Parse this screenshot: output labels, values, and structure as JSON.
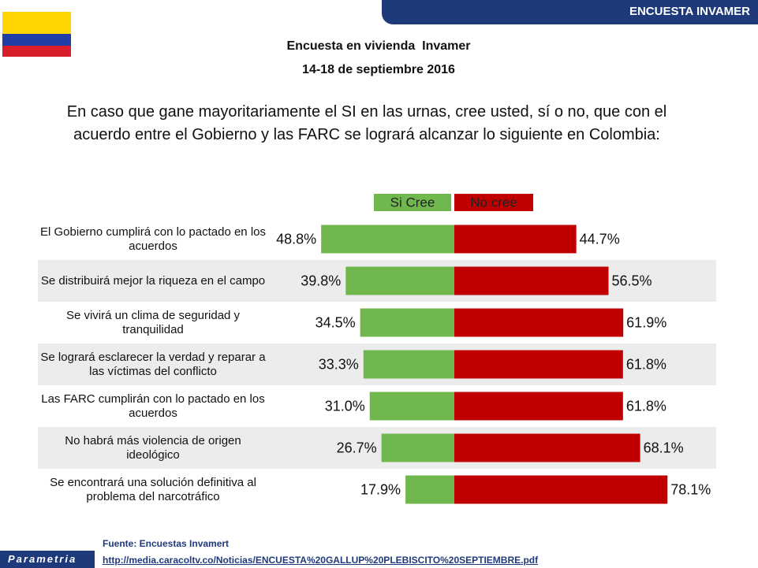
{
  "header_tag": "ENCUESTA INVAMER",
  "logo": "Parametria",
  "source": "Fuente: Encuestas Invamert",
  "url": "http://media.caracoltv.co/Noticias/ENCUESTA%20GALLUP%20PLEBISCITO%20SEPTIEMBRE.pdf",
  "chart_data": {
    "type": "diverging-bar",
    "title": "Encuesta en vivienda  Invamer",
    "subtitle": "14-18 de septiembre 2016",
    "question": "En caso que gane mayoritariamente el SI en las urnas, cree usted, sí o no, que con el acuerdo entre el Gobierno y las FARC se logrará alcanzar lo siguiente en Colombia:",
    "categories": [
      "El Gobierno cumplirá con lo pactado en los acuerdos",
      "Se distribuirá mejor la riqueza en el campo",
      "Se vivirá un clima de seguridad y tranquilidad",
      "Se logrará esclarecer la verdad y reparar a las víctimas del conflicto",
      "Las FARC cumplirán con lo pactado en los acuerdos",
      "No habrá más violencia de origen ideológico",
      "Se encontrará una solución definitiva al problema del narcotráfico"
    ],
    "series": [
      {
        "name": "Si Cree",
        "color": "#70b84e",
        "values": [
          48.8,
          39.8,
          34.5,
          33.3,
          31.0,
          26.7,
          17.9
        ],
        "value_labels": [
          "48.8%",
          "39.8%",
          "34.5%",
          "33.3%",
          "31.0%",
          "26.7%",
          "17.9%"
        ]
      },
      {
        "name": "No cree",
        "color": "#c00000",
        "values": [
          44.7,
          56.5,
          61.9,
          61.8,
          61.8,
          68.1,
          78.1
        ],
        "value_labels": [
          "44.7%",
          "56.5%",
          "61.9%",
          "61.8%",
          "61.8%",
          "68.1%",
          "78.1%"
        ]
      }
    ]
  }
}
